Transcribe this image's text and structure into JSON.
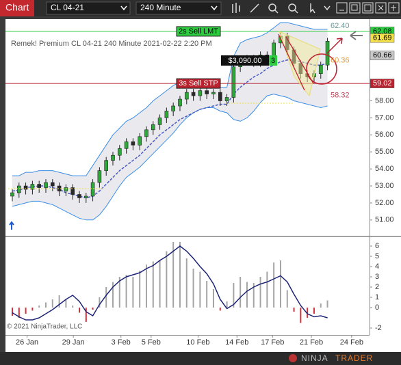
{
  "toolbar": {
    "title": "Chart",
    "instrument": "CL 04-21",
    "interval": "240 Minute"
  },
  "chart_data": [
    {
      "type": "candlestick",
      "title": "Remek!  Premium  CL 04-21  240 Minute  2021-02-22 2:20 PM",
      "open": [
        52.4,
        52.6,
        53.0,
        52.8,
        53.1,
        52.9,
        53.2,
        53.0,
        52.7,
        52.9,
        52.5,
        52.3,
        52.4,
        53.2,
        53.9,
        54.5,
        54.8,
        55.2,
        55.6,
        55.4,
        55.9,
        56.3,
        56.6,
        57.0,
        57.4,
        57.7,
        58.1,
        58.5,
        58.3,
        58.6,
        58.4,
        58.5,
        58.0,
        58.2,
        60.0,
        60.4,
        60.5,
        60.3,
        60.7,
        60.4,
        61.4,
        61.8,
        61.0,
        60.2,
        59.6,
        59.4,
        59.6,
        60.1
      ],
      "high": [
        52.8,
        53.2,
        53.2,
        53.3,
        53.3,
        53.4,
        53.4,
        53.2,
        53.1,
        53.1,
        52.7,
        52.6,
        53.4,
        54.1,
        54.7,
        55.0,
        55.4,
        55.8,
        55.8,
        56.1,
        56.5,
        56.8,
        57.2,
        57.6,
        57.9,
        58.3,
        58.7,
        58.7,
        58.8,
        58.8,
        58.7,
        58.7,
        58.4,
        60.2,
        60.6,
        60.7,
        60.7,
        60.9,
        60.9,
        61.6,
        62.0,
        62.0,
        61.2,
        60.4,
        59.8,
        59.8,
        60.3,
        61.7
      ],
      "low": [
        52.1,
        52.3,
        52.5,
        52.5,
        52.6,
        52.6,
        52.7,
        52.4,
        52.4,
        52.2,
        52.0,
        52.0,
        52.1,
        52.9,
        53.6,
        54.2,
        54.5,
        54.9,
        55.1,
        55.1,
        55.6,
        56.0,
        56.3,
        56.7,
        57.1,
        57.4,
        57.8,
        58.0,
        58.0,
        58.1,
        58.1,
        57.7,
        57.7,
        57.9,
        59.7,
        60.1,
        60.0,
        60.0,
        60.1,
        60.1,
        61.1,
        60.7,
        59.9,
        59.3,
        59.1,
        59.1,
        59.3,
        59.8
      ],
      "close": [
        52.6,
        53.0,
        52.8,
        53.1,
        52.9,
        53.2,
        53.0,
        52.7,
        52.9,
        52.5,
        52.3,
        52.4,
        53.2,
        53.9,
        54.5,
        54.8,
        55.2,
        55.6,
        55.4,
        55.9,
        56.3,
        56.6,
        57.0,
        57.4,
        57.7,
        58.1,
        58.5,
        58.3,
        58.6,
        58.4,
        58.5,
        58.0,
        58.2,
        60.0,
        60.4,
        60.5,
        60.3,
        60.7,
        60.4,
        61.4,
        61.8,
        61.0,
        60.2,
        59.6,
        59.4,
        59.6,
        60.1,
        61.5
      ],
      "up_color": "#2fa83a",
      "down_color": "#2a2a2a",
      "upper_band": [
        53.6,
        53.6,
        53.8,
        53.8,
        53.9,
        53.9,
        53.9,
        53.8,
        53.7,
        53.6,
        53.6,
        53.6,
        54.2,
        54.8,
        55.4,
        56.0,
        56.4,
        56.8,
        57.0,
        57.3,
        57.6,
        58.0,
        58.3,
        58.6,
        58.9,
        59.1,
        59.2,
        59.2,
        59.1,
        59.0,
        58.9,
        58.8,
        58.8,
        60.6,
        61.4,
        61.6,
        61.7,
        61.8,
        62.0,
        62.3,
        62.6,
        62.6,
        62.5,
        62.4,
        62.3,
        62.2,
        62.2,
        62.2
      ],
      "middle_band": [
        52.7,
        52.75,
        52.9,
        52.95,
        53.0,
        53.0,
        52.9,
        52.8,
        52.6,
        52.5,
        52.4,
        52.3,
        52.4,
        52.7,
        53.1,
        53.5,
        53.9,
        54.2,
        54.5,
        54.8,
        55.2,
        55.6,
        56.0,
        56.3,
        56.6,
        56.9,
        57.1,
        57.3,
        57.5,
        57.6,
        57.7,
        57.8,
        57.8,
        58.4,
        58.8,
        59.1,
        59.4,
        59.6,
        59.9,
        60.1,
        60.3,
        60.4,
        60.4,
        60.3,
        60.2,
        60.1,
        60.1,
        60.2
      ],
      "lower_band": [
        51.8,
        51.9,
        52.0,
        52.1,
        52.1,
        52.0,
        51.9,
        51.7,
        51.5,
        51.3,
        51.1,
        51.0,
        51.0,
        51.3,
        51.8,
        52.4,
        53.0,
        53.5,
        53.8,
        54.1,
        54.5,
        54.9,
        55.3,
        55.7,
        56.1,
        56.6,
        57.0,
        57.3,
        57.5,
        57.6,
        57.6,
        57.4,
        57.3,
        56.9,
        56.8,
        57.0,
        57.4,
        57.9,
        58.3,
        58.4,
        58.3,
        58.2,
        58.0,
        57.9,
        57.8,
        57.7,
        57.6,
        57.7
      ],
      "band_color": "#3a8ee6",
      "middle_color": "#4a5cc4",
      "band_fill": "#e9e9ee",
      "xlim": [
        -1.02,
        53.27
      ],
      "ylim": [
        50.15,
        62.8
      ],
      "yticks": [
        {
          "value": 58,
          "label": "58.00"
        },
        {
          "value": 57,
          "label": "57.00"
        },
        {
          "value": 56,
          "label": "56.00"
        },
        {
          "value": 55,
          "label": "55.00"
        },
        {
          "value": 54,
          "label": "54.00"
        },
        {
          "value": 53,
          "label": "53.00"
        },
        {
          "value": 52,
          "label": "52.00"
        },
        {
          "value": 51,
          "label": "51.00"
        }
      ],
      "orders": [
        {
          "label": "2s Sell LMT",
          "price": 62.08,
          "color": "#2ecc40"
        },
        {
          "label": "3s Sell STP",
          "price": 59.02,
          "color": "#b8232f"
        }
      ],
      "position": {
        "pnl": "$3,090.00",
        "quantity": 3
      },
      "price_flags": [
        {
          "value": 62.08,
          "label": "62.08",
          "color": "#2ecc40"
        },
        {
          "value": 61.69,
          "label": "61.69",
          "color": "#f3e04a"
        },
        {
          "value": 60.66,
          "label": "60.66",
          "color": "#c9c9c9"
        },
        {
          "value": 59.02,
          "label": "59.02",
          "color": "#b8232f"
        }
      ],
      "levels": [
        {
          "value": 62.4,
          "label": "62.40",
          "color": "#6c9a9a"
        },
        {
          "value": 60.36,
          "label": "60.36",
          "color": "#e39a3c"
        },
        {
          "value": 58.32,
          "label": "58.32",
          "color": "#c2405a"
        }
      ]
    },
    {
      "type": "macd",
      "histogram": [
        -0.8,
        -1.0,
        -0.6,
        -0.3,
        0.2,
        0.5,
        0.8,
        1.2,
        0.8,
        0.2,
        -0.5,
        -1.4,
        -0.2,
        1.0,
        2.0,
        2.5,
        3.0,
        3.2,
        3.0,
        3.6,
        4.2,
        4.5,
        4.6,
        5.5,
        6.4,
        6.4,
        4.8,
        3.8,
        3.5,
        2.6,
        1.8,
        -0.3,
        0.6,
        2.4,
        3.0,
        2.5,
        2.4,
        3.0,
        3.5,
        4.4,
        4.6,
        1.7,
        -0.4,
        -1.5,
        -1.0,
        -0.6,
        0.4,
        0.7
      ],
      "macd": [
        -0.5,
        -0.9,
        -1.2,
        -1.2,
        -1.0,
        -0.6,
        -0.2,
        0.3,
        0.8,
        1.2,
        0.6,
        -0.4,
        -0.8,
        0.3,
        1.2,
        2.0,
        2.6,
        3.0,
        3.2,
        3.4,
        3.8,
        4.1,
        4.6,
        5.0,
        5.5,
        6.0,
        5.5,
        4.8,
        4.0,
        3.3,
        2.3,
        0.8,
        -0.1,
        0.3,
        1.0,
        1.6,
        2.0,
        2.3,
        2.5,
        2.8,
        3.1,
        2.5,
        1.3,
        0.2,
        -0.6,
        -0.9,
        -0.8,
        -1.0
      ],
      "up_color": "#a4a4a4",
      "down_color": "#d2303c",
      "line_color": "#1c2375",
      "xlim": [
        -1.02,
        53.27
      ],
      "ylim": [
        -2.67,
        6.8
      ],
      "yticks": [
        6,
        5,
        4,
        3,
        2,
        1,
        0,
        -2
      ],
      "xticks": [
        {
          "value": 2.2,
          "label": "26 Jan"
        },
        {
          "value": 9.1,
          "label": "29 Jan"
        },
        {
          "value": 16.2,
          "label": "3 Feb"
        },
        {
          "value": 20.7,
          "label": "5 Feb"
        },
        {
          "value": 27.7,
          "label": "10 Feb"
        },
        {
          "value": 33.5,
          "label": "14 Feb"
        },
        {
          "value": 38.8,
          "label": "17 Feb"
        },
        {
          "value": 44.6,
          "label": "21 Feb"
        },
        {
          "value": 50.6,
          "label": "24 Feb"
        }
      ]
    }
  ],
  "footer": {
    "copyright": "© 2021 NinjaTrader, LLC",
    "brand_1": "NINJA",
    "brand_2": "TRADER"
  }
}
